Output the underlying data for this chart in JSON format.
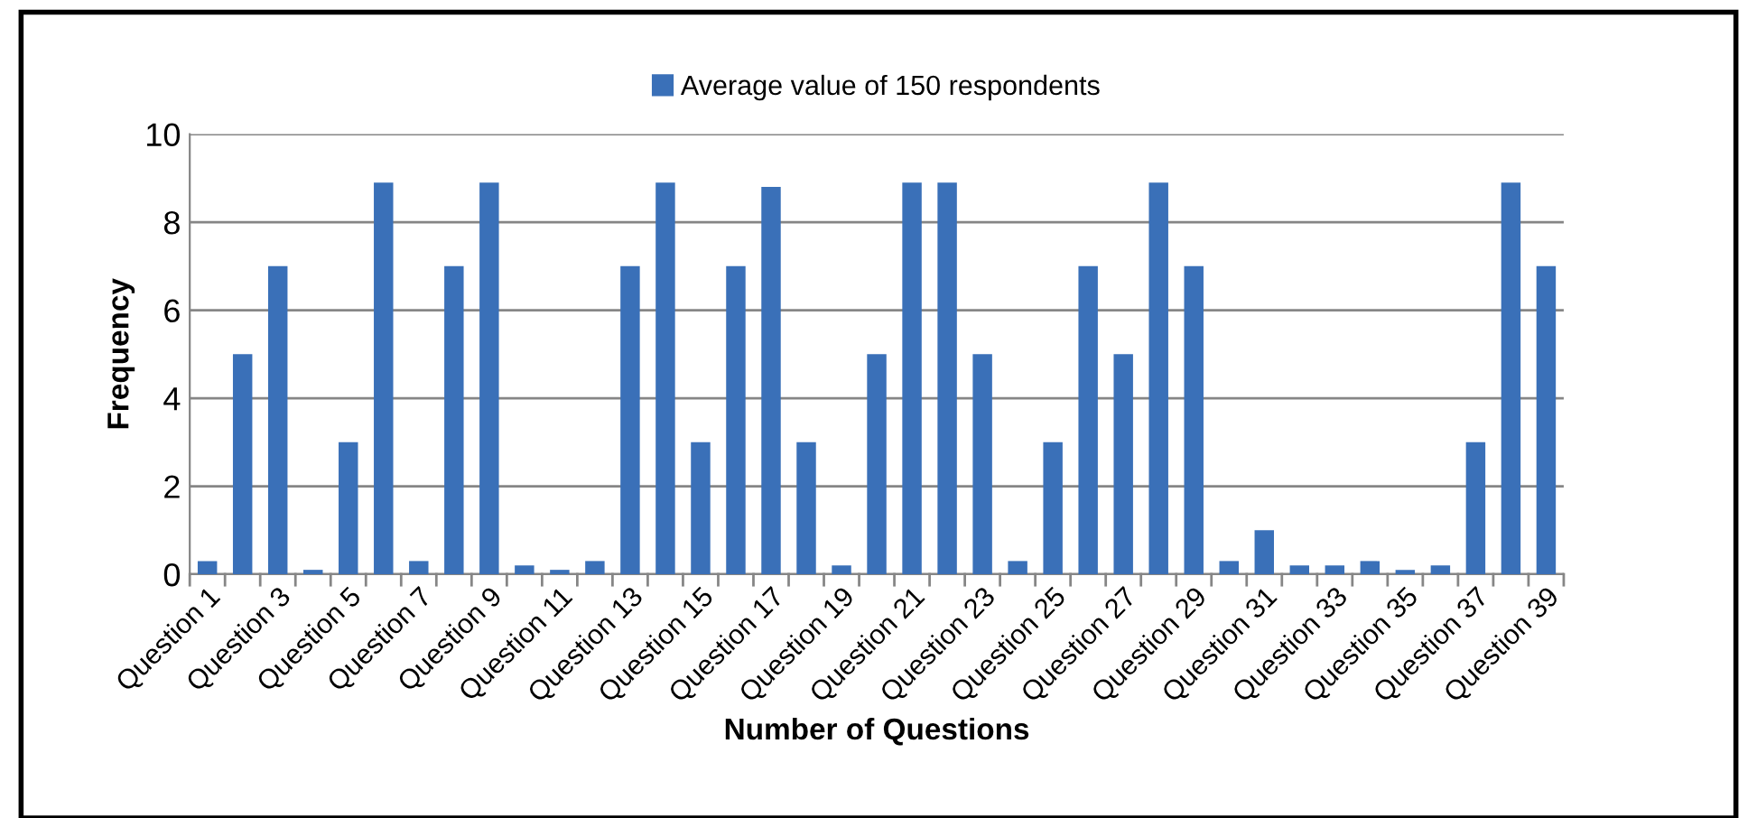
{
  "chart_data": {
    "type": "bar",
    "xlabel": "Number of Questions",
    "ylabel": "Frequency",
    "categories": [
      "Question 1",
      null,
      "Question 3",
      null,
      "Question 5",
      null,
      "Question 7",
      null,
      "Question 9",
      null,
      "Question 11",
      null,
      "Question 13",
      null,
      "Question 15",
      null,
      "Question 17",
      null,
      "Question 19",
      null,
      "Question 21",
      null,
      "Question 23",
      null,
      "Question 25",
      null,
      "Question 27",
      null,
      "Question 29",
      null,
      "Question 31",
      null,
      "Question 33",
      null,
      "Question 35",
      null,
      "Question 37",
      null,
      "Question 39"
    ],
    "series": [
      {
        "name": "Average value of 150 respondents",
        "color": "#3a70b8",
        "values": [
          0.3,
          5,
          7,
          0.1,
          3,
          8.9,
          0.3,
          7,
          8.9,
          0.2,
          0.1,
          0.3,
          7,
          8.9,
          3,
          7,
          8.8,
          3,
          0.2,
          5,
          8.9,
          8.9,
          5,
          0.3,
          3,
          7,
          5,
          8.9,
          7,
          0.3,
          1,
          0.2,
          0.2,
          0.3,
          0.1,
          0.2,
          3,
          8.9,
          7
        ]
      }
    ],
    "ylim": [
      0,
      10
    ],
    "yticks": [
      0,
      2,
      4,
      6,
      8,
      10
    ],
    "grid": "y",
    "legend": "top"
  }
}
